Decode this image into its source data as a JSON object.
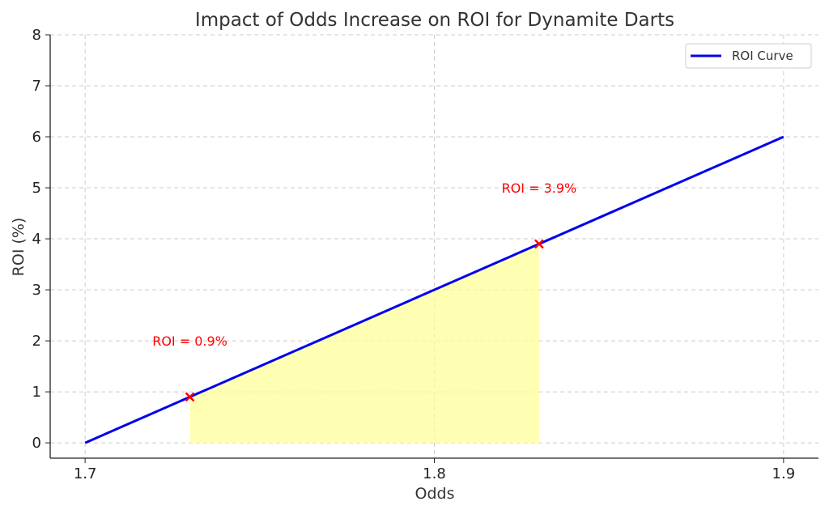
{
  "chart_data": {
    "type": "line",
    "title": "Impact of Odds Increase on ROI for Dynamite Darts",
    "xlabel": "Odds",
    "ylabel": "ROI (%)",
    "xlim": [
      1.69,
      1.91
    ],
    "ylim": [
      -0.3,
      8
    ],
    "x_ticks": [
      1.7,
      1.8,
      1.9
    ],
    "x_tick_labels": [
      "1.7",
      "1.8",
      "1.9"
    ],
    "y_ticks": [
      0,
      1,
      2,
      3,
      4,
      5,
      6,
      7,
      8
    ],
    "y_tick_labels": [
      "0",
      "1",
      "2",
      "3",
      "4",
      "5",
      "6",
      "7",
      "8"
    ],
    "grid": true,
    "legend_position": "top-right",
    "series": [
      {
        "name": "ROI Curve",
        "color": "#0000ee",
        "x": [
          1.7,
          1.9
        ],
        "y": [
          0,
          6
        ]
      }
    ],
    "markers": [
      {
        "x": 1.73,
        "y": 0.9,
        "color": "#ff0000",
        "symbol": "x"
      },
      {
        "x": 1.83,
        "y": 3.9,
        "color": "#ff0000",
        "symbol": "x"
      }
    ],
    "annotations": [
      {
        "text": "ROI = 0.9%",
        "x": 1.73,
        "y": 2.0,
        "color": "#ff0000"
      },
      {
        "text": "ROI = 3.9%",
        "x": 1.83,
        "y": 5.0,
        "color": "#ff0000"
      }
    ],
    "shaded_region": {
      "x_start": 1.73,
      "x_end": 1.83,
      "color": "#ffff99"
    }
  }
}
